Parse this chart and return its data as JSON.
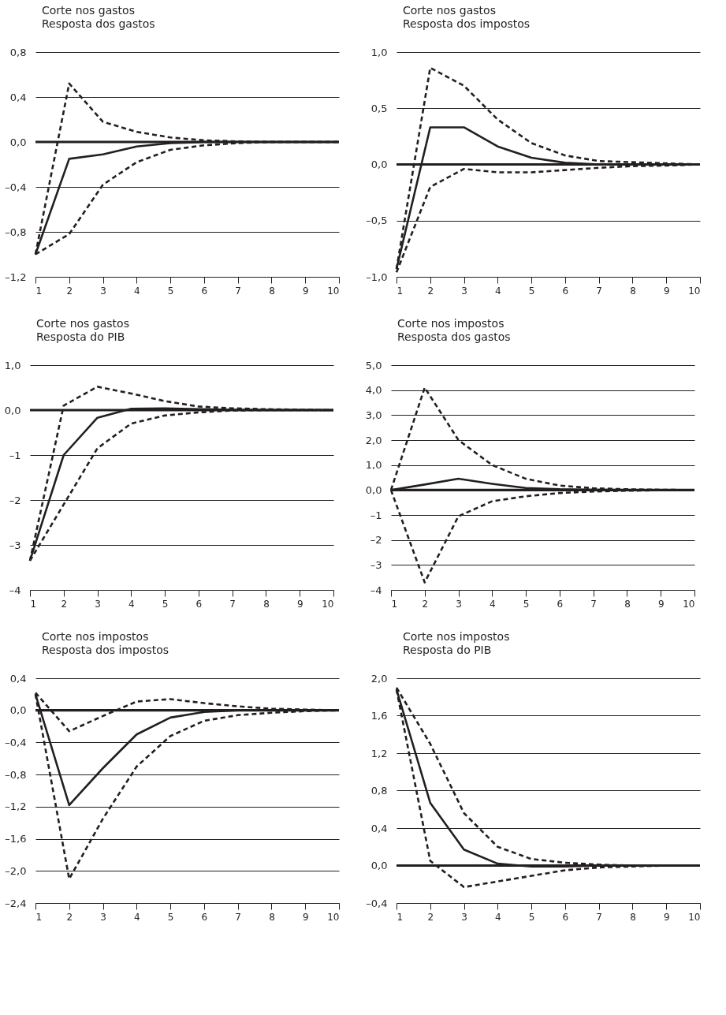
{
  "chart_data": [
    {
      "type": "line",
      "title": "Corte nos gastos",
      "subtitle": "Resposta dos gastos",
      "x": [
        1,
        2,
        3,
        4,
        5,
        6,
        7,
        8,
        9,
        10
      ],
      "xlim": [
        1,
        10
      ],
      "xticks": [
        1,
        2,
        3,
        4,
        5,
        6,
        7,
        8,
        9,
        10
      ],
      "ylim": [
        -1.2,
        0.8
      ],
      "yticks": [
        {
          "value": -1.2,
          "label": "–1,2"
        },
        {
          "value": -0.8,
          "label": "–0,8"
        },
        {
          "value": -0.4,
          "label": "–0,4"
        },
        {
          "value": 0,
          "label": "0,0"
        },
        {
          "value": 0.4,
          "label": "0,4"
        },
        {
          "value": 0.8,
          "label": "0,8"
        }
      ],
      "grid": "y",
      "ref_lines": [
        {
          "axis": "y",
          "value": 0
        }
      ],
      "series": [
        {
          "color": "#231f20",
          "line_style": "solid",
          "values": [
            -1.0,
            -0.15,
            -0.11,
            -0.04,
            -0.01,
            0,
            0,
            0,
            0,
            0
          ]
        },
        {
          "color": "#231f20",
          "line_style": "dashed",
          "values": [
            -1.0,
            0.52,
            0.18,
            0.09,
            0.04,
            0.015,
            0.005,
            0,
            0,
            0
          ]
        },
        {
          "color": "#231f20",
          "line_style": "dashed",
          "values": [
            -1.0,
            -0.82,
            -0.38,
            -0.18,
            -0.07,
            -0.03,
            -0.01,
            0,
            0,
            0
          ]
        }
      ]
    },
    {
      "type": "line",
      "title": "Corte nos gastos",
      "subtitle": "Resposta dos impostos",
      "x": [
        1,
        2,
        3,
        4,
        5,
        6,
        7,
        8,
        9,
        10
      ],
      "xlim": [
        1,
        10
      ],
      "xticks": [
        1,
        2,
        3,
        4,
        5,
        6,
        7,
        8,
        9,
        10
      ],
      "ylim": [
        -1.0,
        1.0
      ],
      "yticks": [
        {
          "value": -1,
          "label": "–1,0"
        },
        {
          "value": -0.5,
          "label": "–0,5"
        },
        {
          "value": 0,
          "label": "0,0"
        },
        {
          "value": 0.5,
          "label": "0,5"
        },
        {
          "value": 1,
          "label": "1,0"
        }
      ],
      "grid": "y",
      "ref_lines": [
        {
          "axis": "y",
          "value": 0
        }
      ],
      "series": [
        {
          "color": "#231f20",
          "line_style": "solid",
          "values": [
            -0.93,
            0.33,
            0.33,
            0.16,
            0.06,
            0.015,
            0,
            0,
            0,
            0
          ]
        },
        {
          "color": "#231f20",
          "line_style": "dashed",
          "values": [
            -0.93,
            0.86,
            0.7,
            0.4,
            0.19,
            0.08,
            0.03,
            0.02,
            0.01,
            0
          ]
        },
        {
          "color": "#231f20",
          "line_style": "dashed",
          "values": [
            -0.96,
            -0.2,
            -0.04,
            -0.07,
            -0.07,
            -0.05,
            -0.03,
            -0.015,
            -0.01,
            0
          ]
        }
      ]
    },
    {
      "type": "line",
      "title": "Corte nos gastos",
      "subtitle": "Resposta do PIB",
      "x": [
        1,
        2,
        3,
        4,
        5,
        6,
        7,
        8,
        9,
        10
      ],
      "xlim": [
        1,
        10
      ],
      "xticks": [
        1,
        2,
        3,
        4,
        5,
        6,
        7,
        8,
        9,
        10
      ],
      "ylim": [
        -4,
        1
      ],
      "yticks": [
        {
          "value": -4,
          "label": "–4"
        },
        {
          "value": -3,
          "label": "–3"
        },
        {
          "value": -2,
          "label": "–2"
        },
        {
          "value": -1,
          "label": "–1"
        },
        {
          "value": 0,
          "label": "0,0"
        },
        {
          "value": 1,
          "label": "1,0"
        }
      ],
      "grid": "y",
      "ref_lines": [
        {
          "axis": "y",
          "value": 0
        }
      ],
      "series": [
        {
          "color": "#231f20",
          "line_style": "solid",
          "values": [
            -3.35,
            -1.0,
            -0.17,
            0.03,
            0.04,
            0.02,
            0.01,
            0,
            0,
            0
          ]
        },
        {
          "color": "#231f20",
          "line_style": "dashed",
          "values": [
            -3.35,
            0.1,
            0.52,
            0.37,
            0.2,
            0.08,
            0.04,
            0.02,
            0.01,
            0
          ]
        },
        {
          "color": "#231f20",
          "line_style": "dashed",
          "values": [
            -3.35,
            -2.1,
            -0.85,
            -0.3,
            -0.12,
            -0.05,
            -0.01,
            0,
            0,
            0
          ]
        }
      ]
    },
    {
      "type": "line",
      "title": "Corte nos impostos",
      "subtitle": "Resposta dos gastos",
      "x": [
        1,
        2,
        3,
        4,
        5,
        6,
        7,
        8,
        9,
        10
      ],
      "xlim": [
        1,
        10
      ],
      "xticks": [
        1,
        2,
        3,
        4,
        5,
        6,
        7,
        8,
        9,
        10
      ],
      "ylim": [
        -4,
        5
      ],
      "yticks": [
        {
          "value": -4,
          "label": "–4"
        },
        {
          "value": -3,
          "label": "–3"
        },
        {
          "value": -2,
          "label": "–2"
        },
        {
          "value": -1,
          "label": "–1"
        },
        {
          "value": 0,
          "label": "0,0"
        },
        {
          "value": 1,
          "label": "1,0"
        },
        {
          "value": 2,
          "label": "2,0"
        },
        {
          "value": 3,
          "label": "3,0"
        },
        {
          "value": 4,
          "label": "4,0"
        },
        {
          "value": 5,
          "label": "5,0"
        }
      ],
      "grid": "y",
      "ref_lines": [
        {
          "axis": "y",
          "value": 0
        }
      ],
      "series": [
        {
          "color": "#231f20",
          "line_style": "solid",
          "values": [
            0,
            0.22,
            0.45,
            0.25,
            0.08,
            0.03,
            0.01,
            0,
            0,
            0
          ]
        },
        {
          "color": "#231f20",
          "line_style": "dashed",
          "values": [
            0,
            4.1,
            2.0,
            1.0,
            0.45,
            0.18,
            0.07,
            0.03,
            0.01,
            0
          ]
        },
        {
          "color": "#231f20",
          "line_style": "dashed",
          "values": [
            0,
            -3.7,
            -1.05,
            -0.45,
            -0.25,
            -0.12,
            -0.06,
            -0.03,
            -0.01,
            0
          ]
        }
      ]
    },
    {
      "type": "line",
      "title": "Corte nos impostos",
      "subtitle": "Resposta dos impostos",
      "x": [
        1,
        2,
        3,
        4,
        5,
        6,
        7,
        8,
        9,
        10
      ],
      "xlim": [
        1,
        10
      ],
      "xticks": [
        1,
        2,
        3,
        4,
        5,
        6,
        7,
        8,
        9,
        10
      ],
      "ylim": [
        -2.4,
        0.4
      ],
      "yticks": [
        {
          "value": -2.4,
          "label": "–2,4"
        },
        {
          "value": -2.0,
          "label": "–2,0"
        },
        {
          "value": -1.6,
          "label": "–1,6"
        },
        {
          "value": -1.2,
          "label": "–1,2"
        },
        {
          "value": -0.8,
          "label": "–0,8"
        },
        {
          "value": -0.4,
          "label": "–0,4"
        },
        {
          "value": 0,
          "label": "0,0"
        },
        {
          "value": 0.4,
          "label": "0,4"
        }
      ],
      "grid": "y",
      "ref_lines": [
        {
          "axis": "y",
          "value": 0
        }
      ],
      "series": [
        {
          "color": "#231f20",
          "line_style": "solid",
          "values": [
            0.2,
            -1.18,
            -0.72,
            -0.3,
            -0.09,
            -0.02,
            0,
            0,
            0,
            0
          ]
        },
        {
          "color": "#231f20",
          "line_style": "dashed",
          "values": [
            0.22,
            -0.26,
            -0.07,
            0.11,
            0.14,
            0.09,
            0.05,
            0.02,
            0.01,
            0
          ]
        },
        {
          "color": "#231f20",
          "line_style": "dashed",
          "values": [
            0.2,
            -2.1,
            -1.35,
            -0.7,
            -0.32,
            -0.13,
            -0.06,
            -0.03,
            -0.01,
            0
          ]
        }
      ]
    },
    {
      "type": "line",
      "title": "Corte nos impostos",
      "subtitle": "Resposta do PIB",
      "x": [
        1,
        2,
        3,
        4,
        5,
        6,
        7,
        8,
        9,
        10
      ],
      "xlim": [
        1,
        10
      ],
      "xticks": [
        1,
        2,
        3,
        4,
        5,
        6,
        7,
        8,
        9,
        10
      ],
      "ylim": [
        -0.4,
        2.0
      ],
      "yticks": [
        {
          "value": -0.4,
          "label": "–0,4"
        },
        {
          "value": 0,
          "label": "0,0"
        },
        {
          "value": 0.4,
          "label": "0,4"
        },
        {
          "value": 0.8,
          "label": "0,8"
        },
        {
          "value": 1.2,
          "label": "1,2"
        },
        {
          "value": 1.6,
          "label": "1,6"
        },
        {
          "value": 2.0,
          "label": "2,0"
        }
      ],
      "grid": "y",
      "ref_lines": [
        {
          "axis": "y",
          "value": 0
        }
      ],
      "series": [
        {
          "color": "#231f20",
          "line_style": "solid",
          "values": [
            1.88,
            0.67,
            0.17,
            0.02,
            -0.01,
            -0.01,
            0,
            0,
            0,
            0
          ]
        },
        {
          "color": "#231f20",
          "line_style": "dashed",
          "values": [
            1.9,
            1.3,
            0.56,
            0.2,
            0.07,
            0.03,
            0.01,
            0,
            0,
            0
          ]
        },
        {
          "color": "#231f20",
          "line_style": "dashed",
          "values": [
            1.88,
            0.05,
            -0.23,
            -0.17,
            -0.11,
            -0.05,
            -0.02,
            -0.01,
            0,
            0
          ]
        }
      ]
    }
  ]
}
